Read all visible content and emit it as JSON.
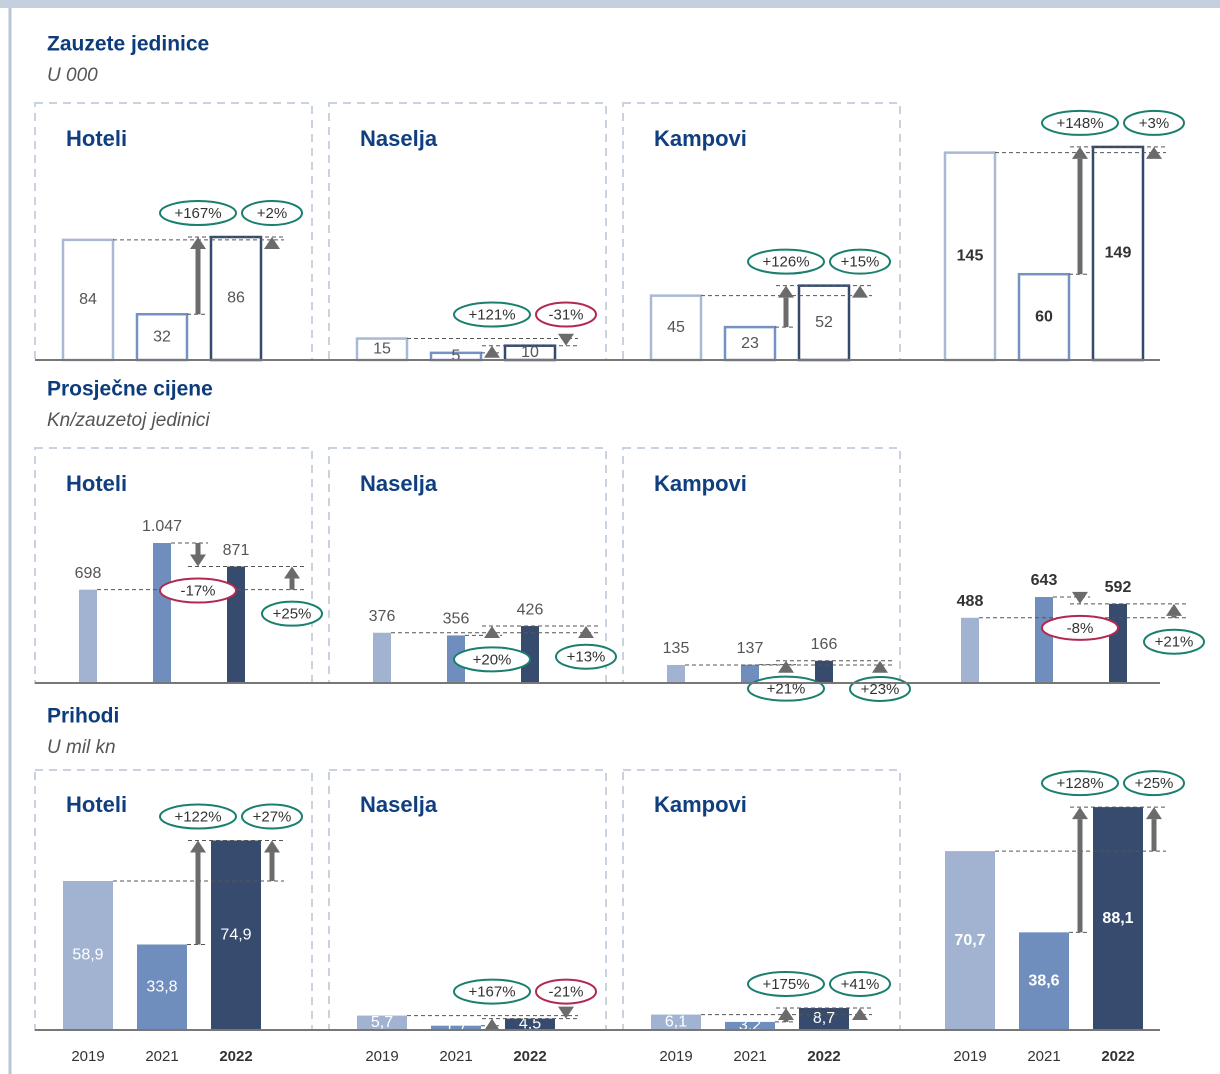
{
  "chart_data": [
    {
      "type": "bar",
      "title": "Zauzete jedinice",
      "subtitle": "U 000",
      "style": "outline",
      "colors": [
        "#a9b8d3",
        "#7692c2",
        "#34496c"
      ],
      "panels": [
        {
          "title": "Hoteli",
          "values": [
            84,
            32,
            86
          ],
          "changes": [
            167,
            2
          ],
          "change_labels": [
            "+167%",
            "+2%"
          ]
        },
        {
          "title": "Naselja",
          "values": [
            15,
            5,
            10
          ],
          "changes": [
            121,
            -31
          ],
          "change_labels": [
            "+121%",
            "-31%"
          ]
        },
        {
          "title": "Kampovi",
          "values": [
            45,
            23,
            52
          ],
          "changes": [
            126,
            15
          ],
          "change_labels": [
            "+126%",
            "+15%"
          ]
        },
        {
          "values": [
            145,
            60,
            149
          ],
          "changes": [
            148,
            3
          ],
          "change_labels": [
            "+148%",
            "+3%"
          ]
        }
      ]
    },
    {
      "type": "bar",
      "title": "Prosječne cijene",
      "subtitle": "Kn/zauzetoj jedinici",
      "style": "fill",
      "colors": [
        "#a1b3d0",
        "#6f8ebe",
        "#364b6e"
      ],
      "panels": [
        {
          "title": "Hoteli",
          "values": [
            698,
            1047,
            871
          ],
          "value_labels": [
            "698",
            "1.047",
            "871"
          ],
          "changes": [
            -17,
            25
          ],
          "change_labels": [
            "-17%",
            "+25%"
          ]
        },
        {
          "title": "Naselja",
          "values": [
            376,
            356,
            426
          ],
          "changes": [
            20,
            13
          ],
          "change_labels": [
            "+20%",
            "+13%"
          ]
        },
        {
          "title": "Kampovi",
          "values": [
            135,
            137,
            166
          ],
          "changes": [
            21,
            23
          ],
          "change_labels": [
            "+21%",
            "+23%"
          ]
        },
        {
          "values": [
            488,
            643,
            592
          ],
          "changes": [
            -8,
            21
          ],
          "change_labels": [
            "-8%",
            "+21%"
          ]
        }
      ]
    },
    {
      "type": "bar",
      "title": "Prihodi",
      "subtitle": "U mil kn",
      "style": "fill",
      "colors": [
        "#a1b3d0",
        "#6f8ebe",
        "#364b6e"
      ],
      "categories": [
        "2019",
        "2021",
        "2022"
      ],
      "panels": [
        {
          "title": "Hoteli",
          "values": [
            58.9,
            33.8,
            74.9
          ],
          "value_labels": [
            "58,9",
            "33,8",
            "74,9"
          ],
          "changes": [
            122,
            27
          ],
          "change_labels": [
            "+122%",
            "+27%"
          ]
        },
        {
          "title": "Naselja",
          "values": [
            5.7,
            1.7,
            4.5
          ],
          "value_labels": [
            "5,7",
            "1,7",
            "4,5"
          ],
          "changes": [
            167,
            -21
          ],
          "change_labels": [
            "+167%",
            "-21%"
          ]
        },
        {
          "title": "Kampovi",
          "values": [
            6.1,
            3.2,
            8.7
          ],
          "value_labels": [
            "6,1",
            "3,2",
            "8,7"
          ],
          "changes": [
            175,
            41
          ],
          "change_labels": [
            "+175%",
            "+41%"
          ]
        },
        {
          "values": [
            70.7,
            38.6,
            88.1
          ],
          "value_labels": [
            "70,7",
            "38,6",
            "88,1"
          ],
          "changes": [
            128,
            25
          ],
          "change_labels": [
            "+128%",
            "+25%"
          ]
        }
      ]
    }
  ]
}
